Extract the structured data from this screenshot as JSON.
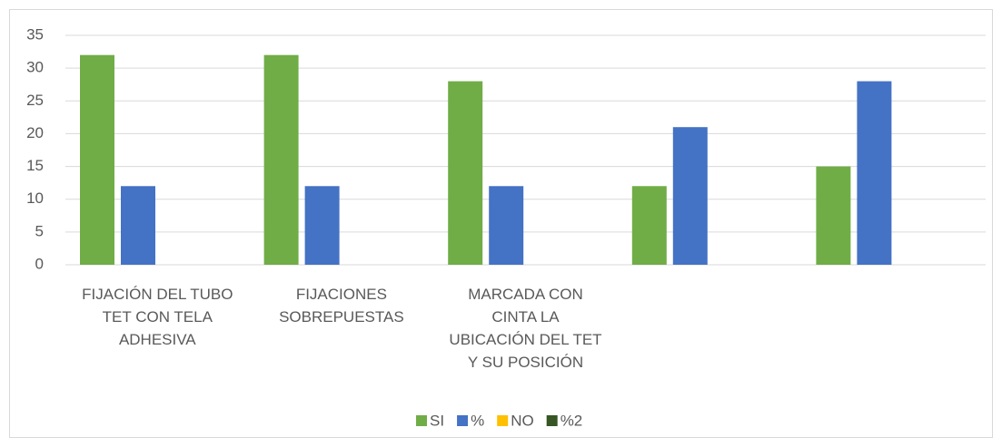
{
  "chart_data": {
    "type": "bar",
    "categories": [
      "FIJACIÓN DEL TUBO TET CON TELA ADHESIVA",
      "FIJACIONES SOBREPUESTAS",
      "MARCADA CON CINTA LA UBICACIÓN DEL TET Y SU POSICIÓN",
      null,
      null
    ],
    "series": [
      {
        "name": "SI",
        "color": "#70ad47",
        "values": [
          32,
          32,
          28,
          12,
          15
        ]
      },
      {
        "name": "%",
        "color": "#4472c4",
        "values": [
          12,
          12,
          12,
          21,
          28
        ]
      },
      {
        "name": "NO",
        "color": "#ffc000",
        "values": [
          0,
          0,
          0,
          0,
          0
        ]
      },
      {
        "name": "%2",
        "color": "#375623",
        "values": [
          0,
          0,
          0,
          0,
          0
        ]
      }
    ],
    "ylim": [
      0,
      35
    ],
    "yticks": [
      0,
      5,
      10,
      15,
      20,
      25,
      30,
      35
    ],
    "grid": true,
    "legend": "bottom"
  }
}
